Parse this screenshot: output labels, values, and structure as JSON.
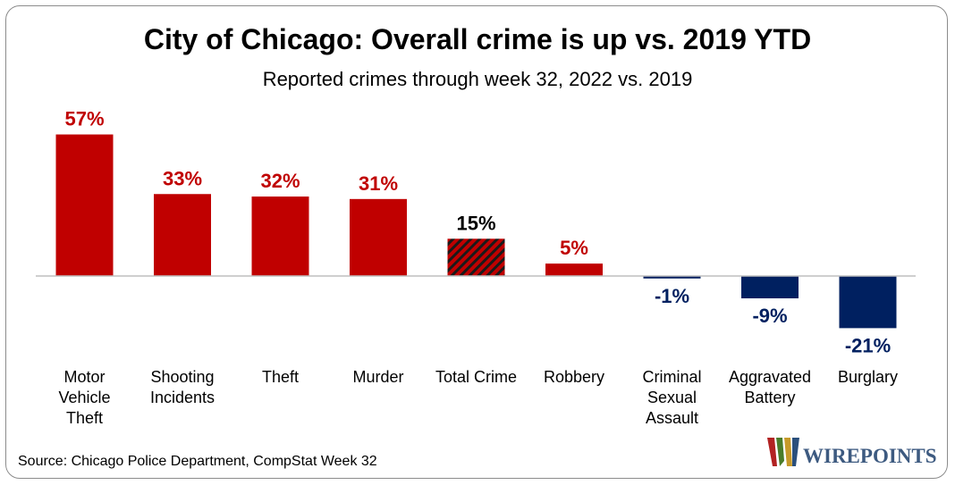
{
  "title": "City of Chicago: Overall crime is up vs. 2019 YTD",
  "subtitle": "Reported crimes through week 32, 2022 vs. 2019",
  "source": "Source: Chicago Police Department, CompStat Week 32",
  "logo_text": "WIREPOINTS",
  "colors": {
    "positive": "#c00000",
    "negative": "#002060",
    "total_label": "#000000",
    "baseline": "#bfbfbf"
  },
  "chart_data": {
    "type": "bar",
    "title": "City of Chicago: Overall crime is up vs. 2019 YTD",
    "subtitle": "Reported crimes through week 32, 2022 vs. 2019",
    "categories": [
      [
        "Motor",
        "Vehicle",
        "Theft"
      ],
      [
        "Shooting",
        "Incidents"
      ],
      [
        "Theft"
      ],
      [
        "Murder"
      ],
      [
        "Total Crime"
      ],
      [
        "Robbery"
      ],
      [
        "Criminal",
        "Sexual",
        "Assault"
      ],
      [
        "Aggravated",
        "Battery"
      ],
      [
        "Burglary"
      ]
    ],
    "values": [
      57,
      33,
      32,
      31,
      15,
      5,
      -1,
      -9,
      -21
    ],
    "data_labels": [
      "57%",
      "33%",
      "32%",
      "31%",
      "15%",
      "5%",
      "-1%",
      "-9%",
      "-21%"
    ],
    "highlight_index": 4,
    "unit": "%",
    "grid": false,
    "legend": "none"
  }
}
